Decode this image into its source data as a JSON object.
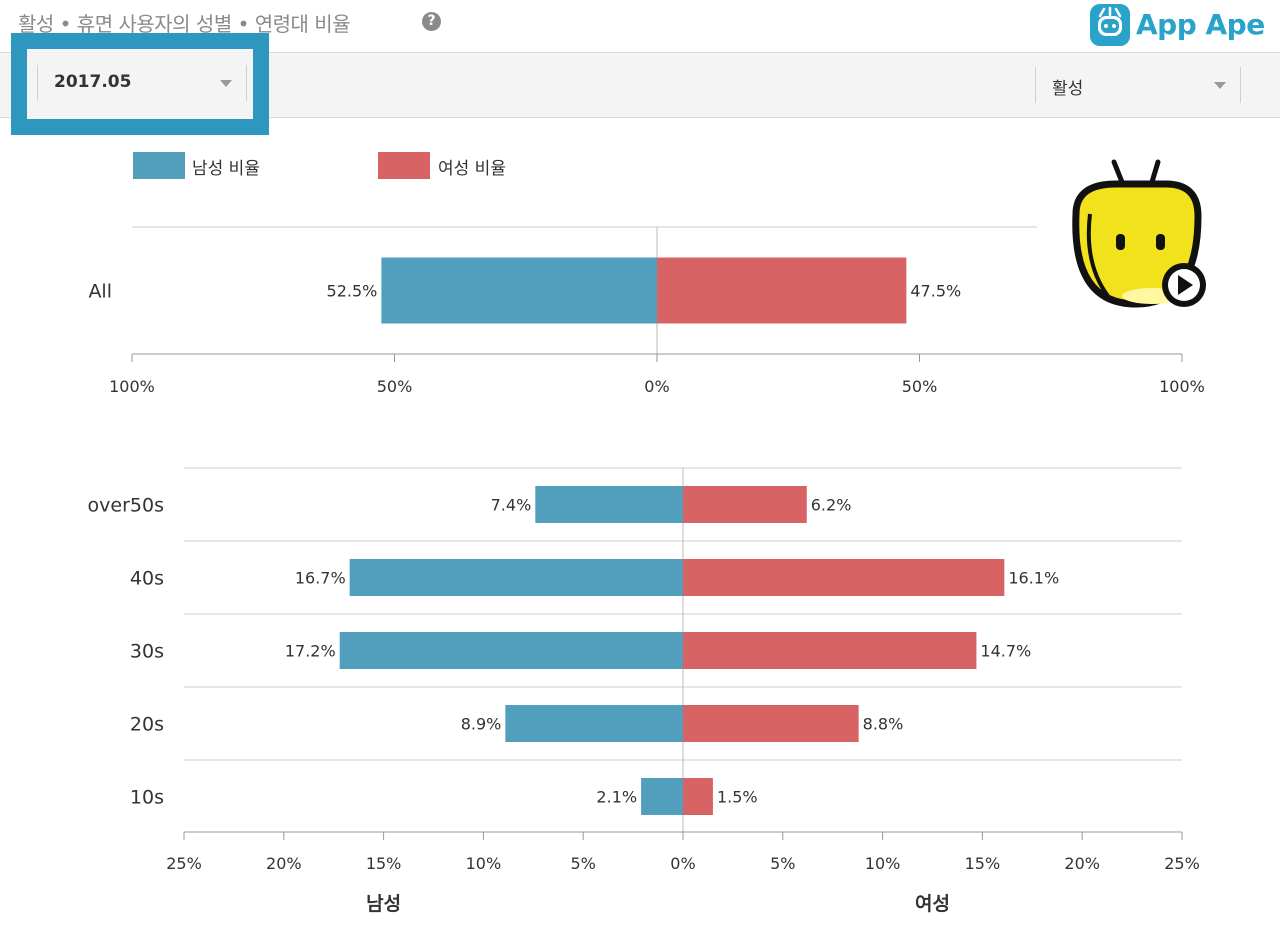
{
  "page": {
    "title": "활성 • 휴면 사용자의 성별 • 연령대 비율",
    "help_glyph": "?",
    "logo_text": "App Ape"
  },
  "controls": {
    "date_value": "2017.05",
    "mode_value": "활성",
    "highlight_color": "#2e97bd"
  },
  "colors": {
    "male": "#529fbd",
    "female": "#d86364",
    "grid": "#cccccc",
    "zero_line": "#bbbbbb"
  },
  "legend": [
    {
      "key": "male",
      "label": "남성 비율"
    },
    {
      "key": "female",
      "label": "여성 비율"
    }
  ],
  "chart_data": [
    {
      "type": "bar",
      "orientation": "horizontal-diverging",
      "categories": [
        "All"
      ],
      "series": [
        {
          "name": "남성 비율",
          "side": "left",
          "values": [
            52.5
          ]
        },
        {
          "name": "여성 비율",
          "side": "right",
          "values": [
            47.5
          ]
        }
      ],
      "value_labels": {
        "male": [
          "52.5%"
        ],
        "female": [
          "47.5%"
        ]
      },
      "xlim": [
        -100,
        100
      ],
      "xticks": [
        -100,
        -50,
        0,
        50,
        100
      ],
      "xtick_labels": [
        "100%",
        "50%",
        "0%",
        "50%",
        "100%"
      ],
      "legend_position": "top-left",
      "grid": false
    },
    {
      "type": "bar",
      "orientation": "horizontal-diverging",
      "categories": [
        "over50s",
        "40s",
        "30s",
        "20s",
        "10s"
      ],
      "series": [
        {
          "name": "남성 비율",
          "side": "left",
          "values": [
            7.4,
            16.7,
            17.2,
            8.9,
            2.1
          ]
        },
        {
          "name": "여성 비율",
          "side": "right",
          "values": [
            6.2,
            16.1,
            14.7,
            8.8,
            1.5
          ]
        }
      ],
      "value_labels": {
        "male": [
          "7.4%",
          "16.7%",
          "17.2%",
          "8.9%",
          "2.1%"
        ],
        "female": [
          "6.2%",
          "16.1%",
          "14.7%",
          "8.8%",
          "1.5%"
        ]
      },
      "xlim": [
        -25,
        25
      ],
      "xticks": [
        -25,
        -20,
        -15,
        -10,
        -5,
        0,
        5,
        10,
        15,
        20,
        25
      ],
      "xtick_labels": [
        "25%",
        "20%",
        "15%",
        "10%",
        "5%",
        "0%",
        "5%",
        "10%",
        "15%",
        "20%",
        "25%"
      ],
      "xlabel_left": "남성",
      "xlabel_right": "여성",
      "grid": true
    }
  ]
}
